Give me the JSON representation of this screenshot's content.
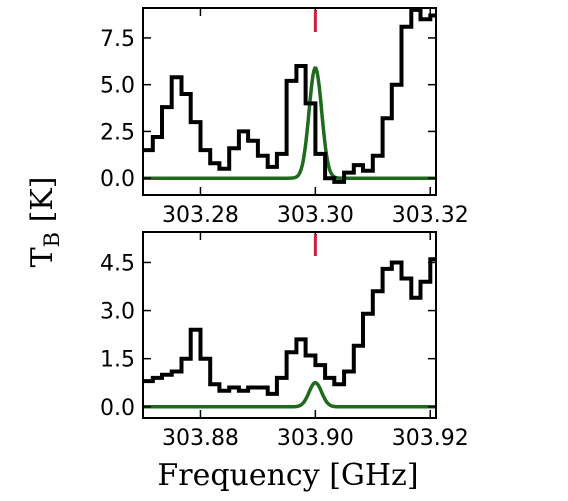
{
  "colors": {
    "observed": "#000000",
    "fit": "#1e6b1e",
    "marker": "#cc1f3a"
  },
  "y_axis_label": {
    "main": "T",
    "sub": "B",
    "unit": "[K]"
  },
  "x_axis_label": "Frequency [GHz]",
  "chart_data": [
    {
      "type": "line",
      "xlim": [
        303.27,
        303.321
      ],
      "ylim": [
        -0.9,
        9.1
      ],
      "xticks": [
        "303.28",
        "303.30",
        "303.32"
      ],
      "xtick_values": [
        303.28,
        303.3,
        303.32
      ],
      "yticks": [
        "0.0",
        "2.5",
        "5.0",
        "7.5"
      ],
      "ytick_values": [
        0.0,
        2.5,
        5.0,
        7.5
      ],
      "marker_x": 303.3,
      "series": [
        {
          "kind": "step",
          "x": [
            303.27,
            303.2717,
            303.2733,
            303.275,
            303.2767,
            303.2783,
            303.28,
            303.2817,
            303.2833,
            303.285,
            303.2867,
            303.2883,
            303.29,
            303.2917,
            303.2933,
            303.295,
            303.2967,
            303.2983,
            303.3,
            303.3017,
            303.3033,
            303.305,
            303.3067,
            303.3083,
            303.31,
            303.3117,
            303.3133,
            303.315,
            303.3167,
            303.3183,
            303.32
          ],
          "y": [
            1.5,
            2.2,
            3.8,
            5.4,
            4.5,
            3.0,
            1.5,
            0.8,
            0.5,
            1.6,
            2.5,
            2.0,
            1.2,
            0.6,
            1.3,
            5.2,
            6.0,
            4.0,
            1.3,
            0.0,
            -0.2,
            0.3,
            0.7,
            0.4,
            1.2,
            3.2,
            5.0,
            8.1,
            9.0,
            8.5,
            8.7
          ]
        },
        {
          "kind": "gaussian",
          "amplitude": 5.9,
          "center": 303.3,
          "sigma": 0.0011
        }
      ]
    },
    {
      "type": "line",
      "xlim": [
        303.87,
        303.921
      ],
      "ylim": [
        -0.35,
        5.45
      ],
      "xticks": [
        "303.88",
        "303.90",
        "303.92"
      ],
      "xtick_values": [
        303.88,
        303.9,
        303.92
      ],
      "yticks": [
        "0.0",
        "1.5",
        "3.0",
        "4.5"
      ],
      "ytick_values": [
        0.0,
        1.5,
        3.0,
        4.5
      ],
      "marker_x": 303.9,
      "series": [
        {
          "kind": "step",
          "x": [
            303.87,
            303.8717,
            303.8733,
            303.875,
            303.8767,
            303.8783,
            303.88,
            303.8817,
            303.8833,
            303.885,
            303.8867,
            303.8883,
            303.89,
            303.8917,
            303.8933,
            303.895,
            303.8967,
            303.8983,
            303.9,
            303.9017,
            303.9033,
            303.905,
            303.9067,
            303.9083,
            303.91,
            303.9117,
            303.9133,
            303.915,
            303.9167,
            303.9183,
            303.92
          ],
          "y": [
            0.8,
            0.9,
            1.0,
            1.1,
            1.5,
            2.4,
            1.5,
            0.7,
            0.5,
            0.6,
            0.5,
            0.6,
            0.6,
            0.4,
            0.9,
            1.7,
            2.1,
            1.6,
            1.3,
            0.9,
            0.7,
            1.1,
            1.9,
            2.9,
            3.6,
            4.3,
            4.5,
            4.0,
            3.4,
            3.9,
            4.6
          ]
        },
        {
          "kind": "gaussian",
          "amplitude": 0.75,
          "center": 303.9,
          "sigma": 0.0011
        }
      ]
    }
  ]
}
